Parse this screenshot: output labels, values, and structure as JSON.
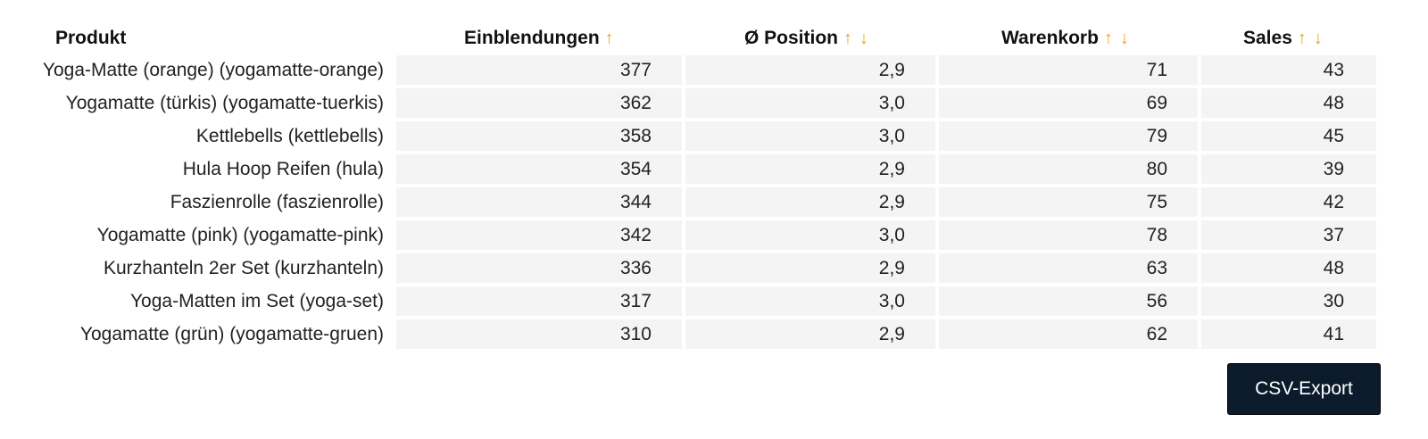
{
  "table": {
    "headers": {
      "product": "Produkt",
      "impressions": "Einblendungen",
      "position": "Ø Position",
      "cart": "Warenkorb",
      "sales": "Sales"
    },
    "sort_icons": {
      "asc": "↑",
      "desc": "↓"
    },
    "rows": [
      {
        "product": "Yoga-Matte (orange) (yogamatte-orange)",
        "impressions": "377",
        "position": "2,9",
        "cart": "71",
        "sales": "43"
      },
      {
        "product": "Yogamatte (türkis) (yogamatte-tuerkis)",
        "impressions": "362",
        "position": "3,0",
        "cart": "69",
        "sales": "48"
      },
      {
        "product": "Kettlebells (kettlebells)",
        "impressions": "358",
        "position": "3,0",
        "cart": "79",
        "sales": "45"
      },
      {
        "product": "Hula Hoop Reifen (hula)",
        "impressions": "354",
        "position": "2,9",
        "cart": "80",
        "sales": "39"
      },
      {
        "product": "Faszienrolle (faszienrolle)",
        "impressions": "344",
        "position": "2,9",
        "cart": "75",
        "sales": "42"
      },
      {
        "product": "Yogamatte (pink) (yogamatte-pink)",
        "impressions": "342",
        "position": "3,0",
        "cart": "78",
        "sales": "37"
      },
      {
        "product": "Kurzhanteln 2er Set (kurzhanteln)",
        "impressions": "336",
        "position": "2,9",
        "cart": "63",
        "sales": "48"
      },
      {
        "product": "Yoga-Matten im Set (yoga-set)",
        "impressions": "317",
        "position": "3,0",
        "cart": "56",
        "sales": "30"
      },
      {
        "product": "Yogamatte (grün) (yogamatte-gruen)",
        "impressions": "310",
        "position": "2,9",
        "cart": "62",
        "sales": "41"
      }
    ]
  },
  "actions": {
    "csv_export_label": "CSV-Export"
  },
  "colors": {
    "sort_icon": "#f0a020",
    "button_bg": "#0b1b2b",
    "cell_bg": "#f4f4f4"
  }
}
